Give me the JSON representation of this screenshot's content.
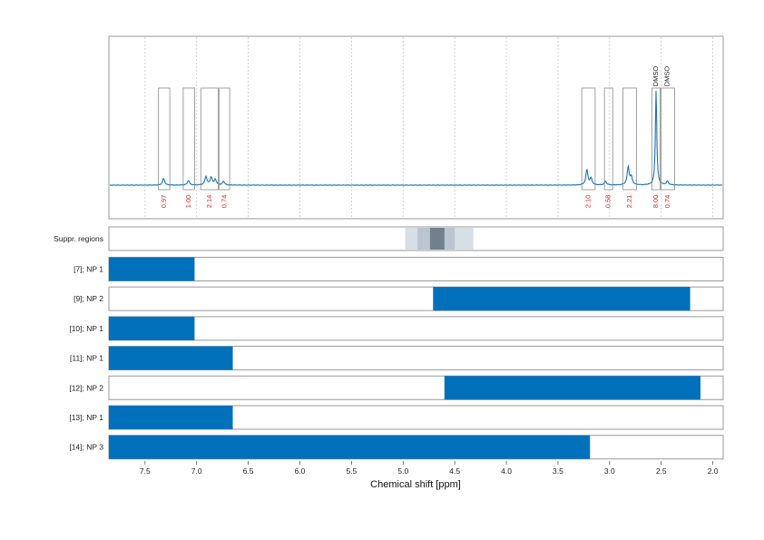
{
  "chart_data": {
    "type": "nmr-spectrum-with-regions",
    "xlabel": "Chemical shift [ppm]",
    "x_reversed": true,
    "xlim": [
      7.85,
      1.9
    ],
    "x_ticks": [
      7.5,
      7.0,
      6.5,
      6.0,
      5.5,
      5.0,
      4.5,
      4.0,
      3.5,
      3.0,
      2.5,
      2.0
    ],
    "x_tick_labels": [
      "7.5",
      "7.0",
      "6.5",
      "6.0",
      "5.5",
      "5.0",
      "4.5",
      "4.0",
      "3.5",
      "3.0",
      "2.5",
      "2.0"
    ],
    "grid": true,
    "spectrum": {
      "color": "#1a73b8",
      "peaks": [
        {
          "ppm": 7.32,
          "height": 0.07
        },
        {
          "ppm": 7.08,
          "height": 0.05
        },
        {
          "ppm": 6.91,
          "height": 0.09
        },
        {
          "ppm": 6.86,
          "height": 0.08
        },
        {
          "ppm": 6.82,
          "height": 0.06
        },
        {
          "ppm": 6.74,
          "height": 0.04
        },
        {
          "ppm": 3.22,
          "height": 0.16
        },
        {
          "ppm": 3.18,
          "height": 0.07
        },
        {
          "ppm": 3.04,
          "height": 0.04
        },
        {
          "ppm": 2.82,
          "height": 0.19
        },
        {
          "ppm": 2.79,
          "height": 0.08
        },
        {
          "ppm": 2.55,
          "height": 1.0
        },
        {
          "ppm": 2.44,
          "height": 0.04
        }
      ]
    },
    "integrals": [
      {
        "from": 7.37,
        "to": 7.26,
        "value": "0.97"
      },
      {
        "from": 7.13,
        "to": 7.02,
        "value": "1.00"
      },
      {
        "from": 6.96,
        "to": 6.79,
        "value": "2.14"
      },
      {
        "from": 6.78,
        "to": 6.68,
        "value": "0.74"
      },
      {
        "from": 3.27,
        "to": 3.14,
        "value": "2.10"
      },
      {
        "from": 3.05,
        "to": 2.97,
        "value": "0.58"
      },
      {
        "from": 2.87,
        "to": 2.74,
        "value": "2.21"
      },
      {
        "from": 2.59,
        "to": 2.51,
        "value": "8.00"
      },
      {
        "from": 2.5,
        "to": 2.37,
        "value": "0.74"
      }
    ],
    "peak_labels": [
      {
        "ppm": 2.55,
        "text": "DMSO"
      },
      {
        "ppm": 2.44,
        "text": "DMSO"
      }
    ],
    "suppression_label": "Suppr. regions",
    "suppression_bands": [
      {
        "from": 4.98,
        "to": 4.32,
        "shade": "#d6dee6"
      },
      {
        "from": 4.86,
        "to": 4.5,
        "shade": "#b9c5d0"
      },
      {
        "from": 4.74,
        "to": 4.6,
        "shade": "#71808c"
      }
    ],
    "region_color": "#0070bb",
    "regions": [
      {
        "label": "[7]; NP 1",
        "from": 7.85,
        "to": 7.02
      },
      {
        "label": "[9]; NP 2",
        "from": 4.71,
        "to": 2.22
      },
      {
        "label": "[10]; NP 1",
        "from": 7.85,
        "to": 7.02
      },
      {
        "label": "[11]; NP 1",
        "from": 7.85,
        "to": 6.65
      },
      {
        "label": "[12]; NP 2",
        "from": 4.6,
        "to": 2.12
      },
      {
        "label": "[13]; NP 1",
        "from": 7.85,
        "to": 6.65
      },
      {
        "label": "[14]; NP 3",
        "from": 7.85,
        "to": 3.19
      }
    ]
  }
}
